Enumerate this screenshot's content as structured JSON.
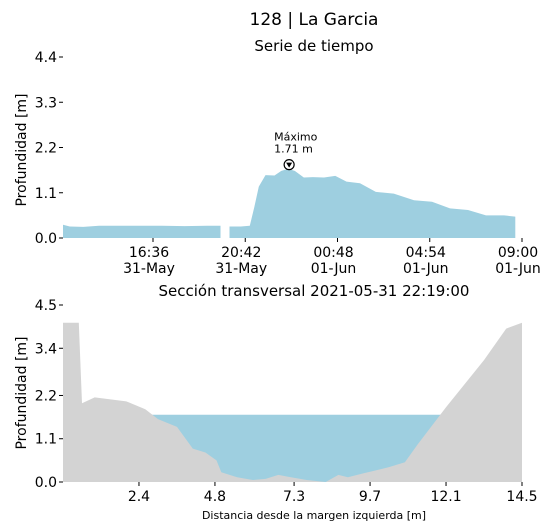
{
  "title": "128 | La Garcia",
  "chart_data": [
    {
      "type": "area",
      "title": "Serie de tiempo",
      "ylabel": "Profundidad [m]",
      "xlabel": "",
      "ylim": [
        0,
        4.4
      ],
      "yticks": [
        "4.4",
        "3.3",
        "2.2",
        "1.1",
        "0.0"
      ],
      "yticks_values": [
        4.4,
        3.3,
        2.2,
        1.1,
        0.0
      ],
      "xticks": [
        {
          "time": "16:36",
          "date": "31-May",
          "hour": 16.6
        },
        {
          "time": "20:42",
          "date": "31-May",
          "hour": 20.7
        },
        {
          "time": "00:48",
          "date": "01-Jun",
          "hour": 24.8
        },
        {
          "time": "04:54",
          "date": "01-Jun",
          "hour": 28.9
        },
        {
          "time": "09:00",
          "date": "01-Jun",
          "hour": 33.0
        }
      ],
      "xlim_hours": [
        12.6,
        33.0
      ],
      "fill_color": "#9ecfe0",
      "segments": [
        {
          "hours": [
            12.6,
            12.9,
            13.5,
            14.2,
            15.0,
            16.0,
            17.0,
            18.0,
            19.0,
            19.6
          ],
          "values": [
            0.32,
            0.28,
            0.27,
            0.3,
            0.3,
            0.3,
            0.3,
            0.29,
            0.3,
            0.3
          ]
        },
        {
          "hours": [
            20.0,
            20.5,
            20.9,
            21.1,
            21.3,
            21.6,
            22.0,
            22.3,
            22.6,
            22.9,
            23.3,
            23.7,
            24.2,
            24.7,
            25.2,
            25.8,
            26.5,
            27.3,
            28.2,
            29.0,
            29.8,
            30.6,
            31.4,
            32.2,
            32.7
          ],
          "values": [
            0.28,
            0.28,
            0.3,
            0.75,
            1.25,
            1.5,
            1.55,
            1.6,
            1.71,
            1.6,
            1.5,
            1.45,
            1.5,
            1.48,
            1.4,
            1.3,
            1.15,
            1.05,
            0.95,
            0.85,
            0.75,
            0.65,
            0.58,
            0.52,
            0.55
          ]
        }
      ],
      "max_annotation": {
        "label": "Máximo",
        "value_text": "1.71 m",
        "hour": 22.65,
        "value": 1.71
      }
    },
    {
      "type": "area",
      "title": "Sección transversal 2021-05-31 22:19:00",
      "ylabel": "Profundidad [m]",
      "xlabel": "Distancia desde la margen izquierda [m]",
      "xlim": [
        0,
        14.5
      ],
      "ylim": [
        0,
        4.5
      ],
      "xticks": [
        "2.4",
        "4.8",
        "7.3",
        "9.7",
        "12.1",
        "14.5"
      ],
      "xticks_values": [
        2.4,
        4.8,
        7.3,
        9.7,
        12.1,
        14.5
      ],
      "yticks": [
        "4.5",
        "3.4",
        "2.2",
        "1.1",
        "0.0"
      ],
      "yticks_values": [
        4.5,
        3.4,
        2.2,
        1.1,
        0.0
      ],
      "water_level": 1.71,
      "water_color": "#9ecfe0",
      "ground_color": "#d3d3d3",
      "ground_x": [
        0,
        0.5,
        0.6,
        1.0,
        1.5,
        2.0,
        2.6,
        3.0,
        3.6,
        4.1,
        4.5,
        4.85,
        5.0,
        5.5,
        6.0,
        6.4,
        6.8,
        7.2,
        7.7,
        8.3,
        8.7,
        9.0,
        9.5,
        9.8,
        10.3,
        10.8,
        11.2,
        12.1,
        13.3,
        14.0,
        14.5
      ],
      "ground_y": [
        4.05,
        4.05,
        2.0,
        2.15,
        2.1,
        2.05,
        1.85,
        1.6,
        1.4,
        0.85,
        0.75,
        0.55,
        0.25,
        0.12,
        0.05,
        0.08,
        0.18,
        0.12,
        0.05,
        0.0,
        0.18,
        0.12,
        0.22,
        0.28,
        0.38,
        0.5,
        0.95,
        1.9,
        3.1,
        3.9,
        4.05
      ]
    }
  ]
}
